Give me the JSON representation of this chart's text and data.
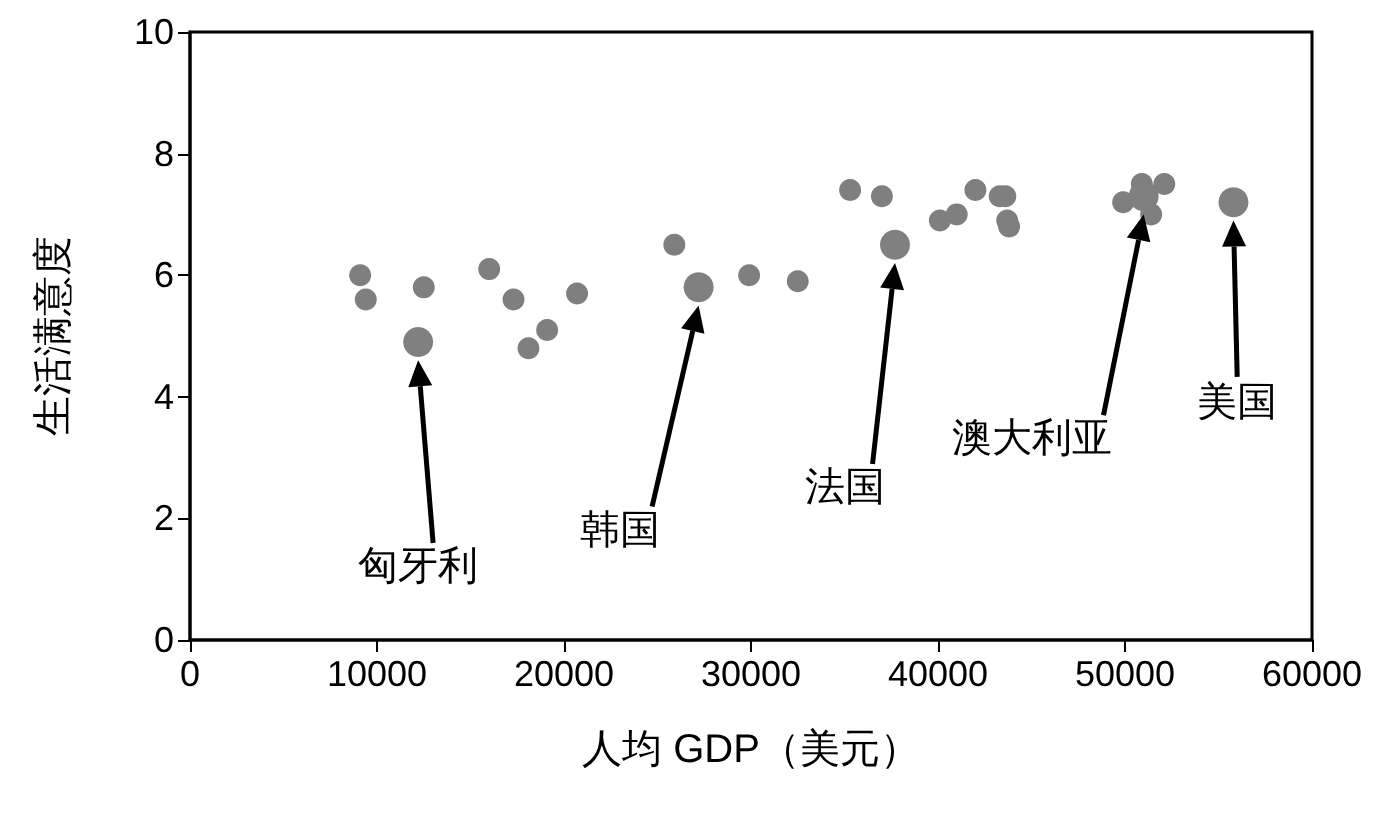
{
  "chart_data": {
    "type": "scatter",
    "xlabel": "人均 GDP（美元）",
    "ylabel": "生活满意度",
    "xlim": [
      0,
      60000
    ],
    "xticks": [
      0,
      10000,
      20000,
      30000,
      40000,
      50000,
      60000
    ],
    "ylim": [
      0,
      10
    ],
    "yticks": [
      0,
      2,
      4,
      6,
      8,
      10
    ],
    "grid": false,
    "marker": "circle",
    "series": [
      {
        "color": "#7f7f7f",
        "x": [
          9100,
          9400,
          12500,
          16000,
          17300,
          18100,
          19100,
          20700,
          25900,
          29900,
          32500,
          35300,
          37000,
          40100,
          41000,
          42000,
          43300,
          43600,
          43700,
          43800,
          49900,
          50900,
          51400,
          52100
        ],
        "values": [
          6.0,
          5.6,
          5.8,
          6.1,
          5.6,
          4.8,
          5.1,
          5.7,
          6.5,
          6.0,
          5.9,
          7.4,
          7.3,
          6.9,
          7.0,
          7.4,
          7.3,
          7.3,
          6.9,
          6.8,
          7.2,
          7.5,
          7.0,
          7.5
        ]
      },
      {
        "color": "#808080",
        "x": [
          12200,
          27200,
          37700,
          51000,
          55800
        ],
        "values": [
          4.9,
          5.8,
          6.5,
          7.3,
          7.2
        ]
      }
    ],
    "annotations": [
      "匈牙利",
      "韩国",
      "法国",
      "澳大利亚",
      "美国"
    ]
  }
}
